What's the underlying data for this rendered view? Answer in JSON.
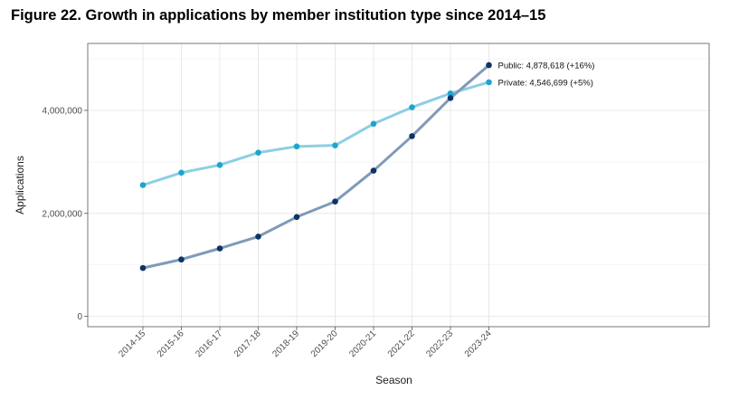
{
  "title": "Figure 22. Growth in applications by member institution type since 2014–15",
  "chart_data": {
    "type": "line",
    "xlabel": "Season",
    "ylabel": "Applications",
    "categories": [
      "2014-15",
      "2015-16",
      "2016-17",
      "2017-18",
      "2018-19",
      "2019-20",
      "2020-21",
      "2021-22",
      "2022-23",
      "2023-24"
    ],
    "ylim": [
      -200000,
      5300000
    ],
    "yticks": [
      0,
      2000000,
      4000000
    ],
    "ytick_labels": [
      "0",
      "2,000,000",
      "4,000,000"
    ],
    "grid": true,
    "series": [
      {
        "key": "public",
        "values": [
          940000,
          1105000,
          1320000,
          1550000,
          1930000,
          2230000,
          2830000,
          3500000,
          4240000,
          4878618
        ],
        "line_color": "#7f9ab8",
        "point_color": "#0d3466",
        "label": "Public: 4,878,618 (+16%)"
      },
      {
        "key": "private",
        "values": [
          2550000,
          2790000,
          2940000,
          3180000,
          3300000,
          3320000,
          3740000,
          4060000,
          4330000,
          4546699
        ],
        "line_color": "#8ccfe3",
        "point_color": "#1ea5cf",
        "label": "Private: 4,546,699 (+5%)"
      }
    ]
  }
}
